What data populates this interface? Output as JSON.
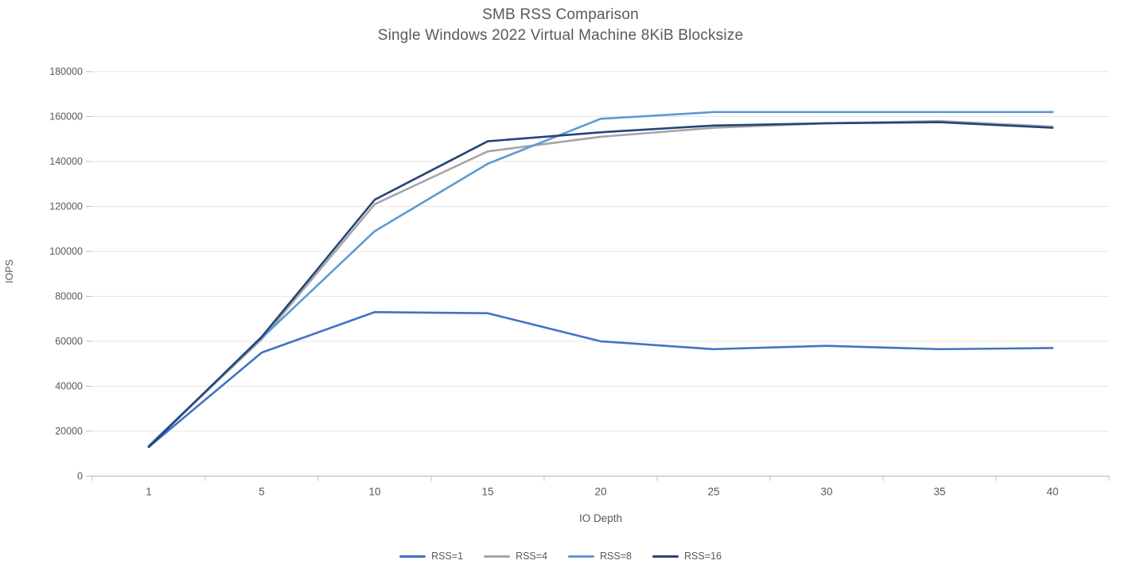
{
  "chart_data": {
    "type": "line",
    "title": "SMB RSS Comparison",
    "subtitle": "Single Windows 2022 Virtual Machine 8KiB Blocksize",
    "xlabel": "IO Depth",
    "ylabel": "IOPS",
    "categories": [
      1,
      5,
      10,
      15,
      20,
      25,
      30,
      35,
      40
    ],
    "ylim": [
      0,
      180000
    ],
    "ytick_step": 20000,
    "ytick_labels": [
      "0",
      "20000",
      "40000",
      "60000",
      "80000",
      "100000",
      "120000",
      "140000",
      "160000",
      "180000"
    ],
    "grid": true,
    "legend_position": "bottom",
    "series": [
      {
        "name": "RSS=1",
        "color": "#4472C4",
        "values": [
          13000,
          55000,
          73000,
          72500,
          60000,
          56500,
          58000,
          56500,
          57000
        ]
      },
      {
        "name": "RSS=4",
        "color": "#A5A5A5",
        "values": [
          13500,
          61000,
          121000,
          144500,
          151000,
          155000,
          157000,
          158000,
          155500
        ]
      },
      {
        "name": "RSS=8",
        "color": "#5B9BD5",
        "values": [
          13500,
          61500,
          109000,
          139000,
          159000,
          162000,
          162000,
          162000,
          162000
        ]
      },
      {
        "name": "RSS=16",
        "color": "#264478",
        "values": [
          13000,
          62000,
          123000,
          149000,
          153000,
          156000,
          157000,
          157500,
          155000
        ]
      }
    ],
    "colors": {
      "title_text": "#595959",
      "axis_text": "#595959",
      "axis_line": "#BFBFBF",
      "gridline": "#E6E6E6",
      "background": "#FFFFFF"
    }
  }
}
